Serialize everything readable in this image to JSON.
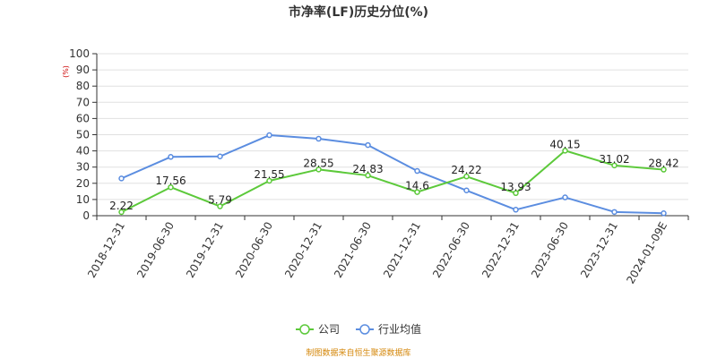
{
  "chart_data": {
    "type": "line",
    "title": "市净率(LF)历史分位(%)",
    "unit_label": "(%)",
    "categories": [
      "2018-12-31",
      "2019-06-30",
      "2019-12-31",
      "2020-06-30",
      "2020-12-31",
      "2021-06-30",
      "2021-12-31",
      "2022-06-30",
      "2022-12-31",
      "2023-06-30",
      "2023-12-31",
      "2024-01-09E"
    ],
    "ylim": [
      0,
      100
    ],
    "yticks": [
      0,
      10,
      20,
      30,
      40,
      50,
      60,
      70,
      80,
      90,
      100
    ],
    "grid": true,
    "legend_position": "bottom-center",
    "series": [
      {
        "name": "公司",
        "color": "#5cc93a",
        "values": [
          2.22,
          17.56,
          5.79,
          21.55,
          28.55,
          24.83,
          14.6,
          24.22,
          13.93,
          40.15,
          31.02,
          28.42
        ],
        "labels": [
          "2.22",
          "17.56",
          "5.79",
          "21.55",
          "28.55",
          "24.83",
          "14.6",
          "24.22",
          "13.93",
          "40.15",
          "31.02",
          "28.42"
        ]
      },
      {
        "name": "行业均值",
        "color": "#5b8de0",
        "values": [
          23,
          36.3,
          36.6,
          49.7,
          47.5,
          43.6,
          27.6,
          15.6,
          3.7,
          11.3,
          2.3,
          1.5
        ]
      }
    ]
  },
  "source_note": "制图数据来自恒生聚源数据库"
}
